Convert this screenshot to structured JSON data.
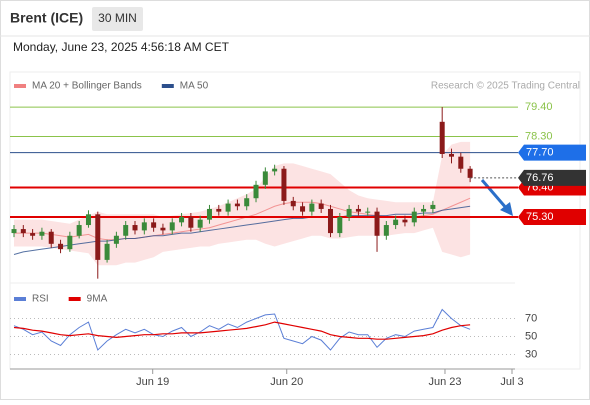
{
  "header": {
    "symbol": "Brent (ICE)",
    "timeframe": "30 MIN",
    "datetime": "Monday, June 23, 2025 4:56:18 AM CET"
  },
  "source": "Research © 2025 Trading Central",
  "chart_data": [
    {
      "type": "candlestick",
      "ylim": [
        72.95,
        79.85
      ],
      "xlim": [
        0,
        53.5
      ],
      "xticks": [
        {
          "value": 14.9,
          "label": "Jun 19"
        },
        {
          "value": 29.3,
          "label": "Jun 20"
        },
        {
          "value": 46.3,
          "label": "Jun 23"
        },
        {
          "value": 53.5,
          "label": "Jul 3"
        }
      ],
      "open": [
        74.7,
        74.85,
        74.7,
        74.6,
        74.75,
        74.3,
        74.1,
        74.6,
        75.0,
        75.4,
        73.7,
        74.3,
        74.6,
        75.0,
        74.8,
        75.1,
        74.9,
        74.8,
        75.1,
        75.3,
        74.9,
        75.2,
        75.6,
        75.5,
        75.8,
        75.7,
        76.0,
        76.5,
        77.0,
        77.1,
        75.9,
        75.7,
        75.5,
        75.8,
        75.6,
        74.7,
        75.3,
        75.6,
        75.5,
        75.5,
        74.6,
        75.0,
        75.2,
        75.1,
        75.5,
        75.6,
        78.85,
        77.65,
        77.55,
        77.1
      ],
      "high": [
        75.0,
        75.0,
        74.85,
        74.9,
        74.85,
        74.45,
        74.75,
        75.15,
        75.55,
        75.5,
        74.45,
        74.75,
        75.15,
        75.15,
        75.25,
        75.25,
        75.05,
        75.25,
        75.45,
        75.45,
        75.35,
        75.75,
        75.75,
        75.95,
        75.95,
        76.15,
        76.65,
        77.15,
        77.25,
        77.2,
        76.05,
        75.85,
        75.95,
        75.95,
        75.75,
        75.45,
        75.75,
        75.75,
        75.65,
        75.65,
        75.15,
        75.35,
        75.35,
        75.65,
        75.75,
        75.9,
        79.4,
        77.85,
        77.7,
        77.2
      ],
      "low": [
        74.55,
        74.55,
        74.45,
        74.45,
        74.15,
        73.95,
        74.0,
        74.5,
        74.9,
        73.0,
        73.6,
        74.15,
        74.45,
        74.65,
        74.65,
        74.75,
        74.65,
        74.65,
        74.95,
        74.75,
        74.75,
        75.05,
        75.35,
        75.35,
        75.55,
        75.55,
        75.85,
        76.35,
        76.85,
        75.75,
        75.55,
        75.35,
        75.35,
        75.45,
        74.55,
        74.55,
        75.15,
        75.35,
        75.35,
        74.0,
        74.45,
        74.85,
        74.95,
        74.95,
        75.35,
        75.45,
        77.5,
        77.3,
        76.95,
        76.6
      ],
      "close": [
        74.85,
        74.7,
        74.6,
        74.75,
        74.3,
        74.1,
        74.6,
        75.0,
        75.4,
        73.7,
        74.3,
        74.6,
        75.0,
        74.8,
        75.1,
        74.9,
        74.8,
        75.1,
        75.3,
        74.9,
        75.2,
        75.6,
        75.5,
        75.8,
        75.7,
        76.0,
        76.5,
        77.0,
        77.1,
        75.9,
        75.7,
        75.5,
        75.8,
        75.6,
        74.7,
        75.3,
        75.6,
        75.5,
        75.5,
        74.6,
        75.0,
        75.2,
        75.1,
        75.5,
        75.6,
        75.75,
        77.65,
        77.55,
        77.1,
        76.76
      ],
      "up_color": "#3a8a3a",
      "down_color": "#8b1a1a",
      "series": [
        {
          "name": "MA 20 + Bollinger Bands",
          "color": "#f08080",
          "values": [
            74.7,
            74.7,
            74.7,
            74.7,
            74.65,
            74.6,
            74.55,
            74.6,
            74.65,
            74.5,
            74.45,
            74.45,
            74.5,
            74.5,
            74.55,
            74.6,
            74.65,
            74.7,
            74.75,
            74.8,
            74.85,
            74.9,
            75.0,
            75.1,
            75.2,
            75.3,
            75.4,
            75.55,
            75.7,
            75.8,
            75.85,
            75.85,
            75.85,
            75.8,
            75.7,
            75.6,
            75.5,
            75.45,
            75.4,
            75.35,
            75.3,
            75.3,
            75.3,
            75.3,
            75.35,
            75.4,
            75.55,
            75.7,
            75.85,
            76.0
          ],
          "upper": [
            75.2,
            75.2,
            75.2,
            75.2,
            75.15,
            75.1,
            75.05,
            75.2,
            75.35,
            75.5,
            75.4,
            75.4,
            75.4,
            75.4,
            75.4,
            75.4,
            75.3,
            75.35,
            75.4,
            75.45,
            75.5,
            75.6,
            75.7,
            75.85,
            76.0,
            76.15,
            76.35,
            76.8,
            77.2,
            77.3,
            77.3,
            77.2,
            77.1,
            77.0,
            76.9,
            76.6,
            76.3,
            76.1,
            76.0,
            75.95,
            75.9,
            75.85,
            75.85,
            75.85,
            75.85,
            75.85,
            77.6,
            78.0,
            78.1,
            78.1
          ],
          "lower": [
            74.2,
            74.2,
            74.2,
            74.2,
            74.15,
            74.1,
            74.05,
            74.0,
            73.95,
            73.5,
            73.5,
            73.5,
            73.6,
            73.6,
            73.7,
            73.8,
            74.0,
            74.05,
            74.1,
            74.15,
            74.2,
            74.2,
            74.3,
            74.35,
            74.4,
            74.45,
            74.45,
            74.3,
            74.2,
            74.3,
            74.4,
            74.5,
            74.6,
            74.6,
            74.5,
            74.5,
            74.55,
            74.6,
            74.6,
            74.6,
            74.6,
            74.65,
            74.7,
            74.7,
            74.8,
            74.9,
            74.0,
            73.9,
            73.8,
            73.9
          ]
        },
        {
          "name": "MA 50",
          "color": "#2c4f8c",
          "values": [
            73.9,
            74.0,
            74.05,
            74.1,
            74.15,
            74.2,
            74.25,
            74.3,
            74.35,
            74.4,
            74.4,
            74.45,
            74.5,
            74.5,
            74.55,
            74.6,
            74.6,
            74.65,
            74.7,
            74.7,
            74.75,
            74.8,
            74.85,
            74.9,
            74.95,
            75.0,
            75.05,
            75.1,
            75.15,
            75.2,
            75.25,
            75.25,
            75.3,
            75.3,
            75.3,
            75.3,
            75.35,
            75.35,
            75.35,
            75.35,
            75.35,
            75.4,
            75.4,
            75.4,
            75.45,
            75.45,
            75.55,
            75.6,
            75.65,
            75.7
          ]
        }
      ],
      "levels": [
        {
          "value": 79.4,
          "label": "79.40",
          "color": "#8bc34a"
        },
        {
          "value": 78.3,
          "label": "78.30",
          "color": "#8bc34a"
        },
        {
          "value": 77.7,
          "label": "77.70",
          "color": "#1e6fe8"
        },
        {
          "value": 76.4,
          "label": "76.40",
          "color": "#e00000"
        },
        {
          "value": 75.3,
          "label": "75.30",
          "color": "#e00000"
        }
      ]
    },
    {
      "type": "line",
      "ylim": [
        15,
        100
      ],
      "yticks": [
        70,
        50,
        30
      ],
      "series": [
        {
          "name": "RSI",
          "color": "#5b7fd6",
          "values": [
            62,
            58,
            52,
            55,
            45,
            40,
            52,
            60,
            66,
            35,
            45,
            52,
            58,
            54,
            58,
            52,
            50,
            56,
            60,
            50,
            55,
            62,
            58,
            64,
            60,
            66,
            70,
            74,
            75,
            48,
            45,
            42,
            50,
            46,
            35,
            48,
            55,
            52,
            52,
            38,
            48,
            52,
            50,
            56,
            58,
            60,
            80,
            70,
            62,
            58
          ]
        },
        {
          "name": "9MA",
          "color": "#e00000",
          "values": [
            60,
            59,
            57,
            56,
            54,
            52,
            51,
            52,
            53,
            51,
            50,
            49,
            50,
            51,
            52,
            52,
            53,
            53,
            54,
            54,
            54,
            55,
            56,
            57,
            58,
            59,
            61,
            63,
            66,
            64,
            62,
            60,
            58,
            56,
            52,
            50,
            49,
            48,
            48,
            47,
            47,
            48,
            49,
            50,
            51,
            53,
            57,
            60,
            62,
            63
          ]
        }
      ]
    }
  ]
}
